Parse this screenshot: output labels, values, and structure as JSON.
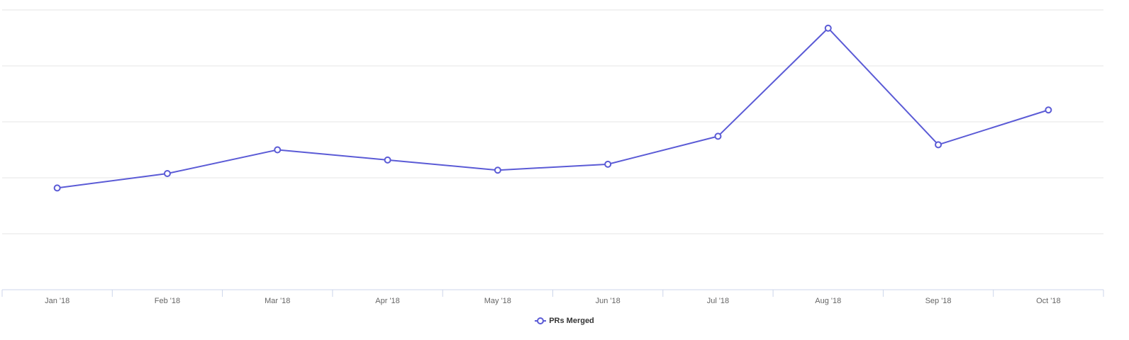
{
  "chart_data": {
    "type": "line",
    "title": "",
    "xlabel": "",
    "ylabel": "",
    "categories": [
      "Jan '18",
      "Feb '18",
      "Mar '18",
      "Apr '18",
      "May '18",
      "Jun '18",
      "Jul '18",
      "Aug '18",
      "Sep '18",
      "Oct '18"
    ],
    "series": [
      {
        "name": "PRs Merged",
        "color": "#5b5bd6",
        "values": [
          8,
          11.4,
          17,
          14.6,
          12.2,
          13.6,
          20.2,
          45.7,
          18.2,
          26.4
        ]
      }
    ],
    "ylim": [
      -16,
      50
    ],
    "grid": true,
    "y_tick_labels_shown": false,
    "legend_position": "bottom-center"
  },
  "legend": {
    "label": "PRs Merged"
  }
}
